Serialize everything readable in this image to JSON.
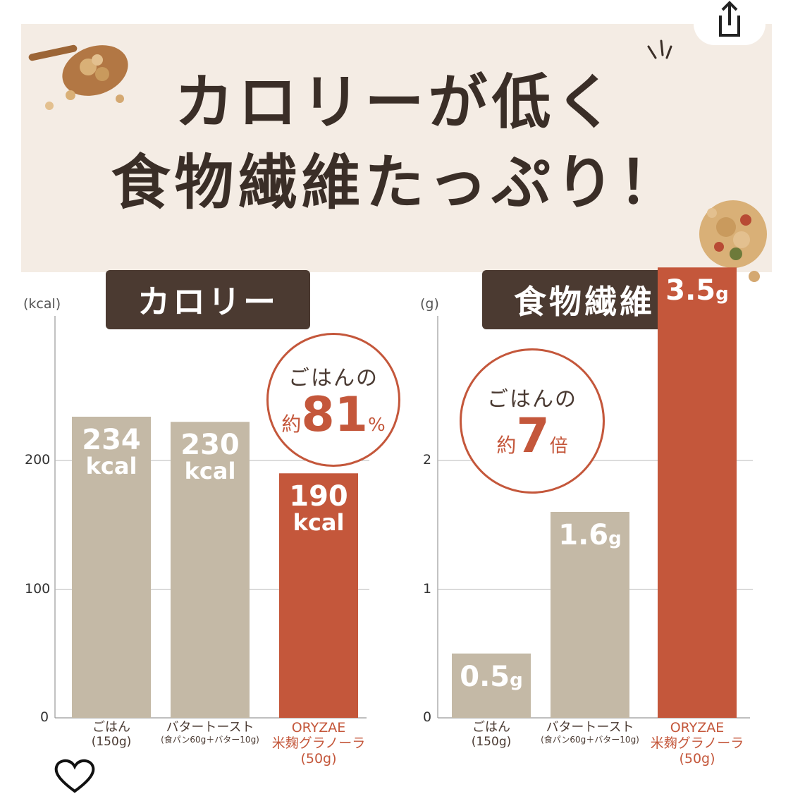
{
  "headline": {
    "line1": "カロリーが低く",
    "line2": "食物繊維たっぷり！"
  },
  "colors": {
    "neutral_bar": "#c4b9a6",
    "accent_bar": "#c4573b",
    "pill_bg": "#4b3a31",
    "hero_bg": "#f4ece4"
  },
  "chart_data": [
    {
      "type": "bar",
      "title": "カロリー",
      "unit": "(kcal)",
      "categories": [
        {
          "main": "ごはん",
          "paren": "(150g)",
          "small": ""
        },
        {
          "main": "バタートースト",
          "paren": "",
          "small": "(食パン60g＋バター10g)"
        },
        {
          "main": "ORYZAE\n米麹グラノーラ",
          "paren": "(50g)",
          "small": ""
        }
      ],
      "values": [
        234,
        230,
        190
      ],
      "value_labels": [
        {
          "val": "234",
          "sub": "kcal"
        },
        {
          "val": "230",
          "sub": "kcal"
        },
        {
          "val": "190",
          "sub": "kcal"
        }
      ],
      "yticks": [
        "0",
        "100",
        "200"
      ],
      "ylim": [
        0,
        250
      ],
      "highlight_index": 2,
      "callout": {
        "lead": "ごはんの",
        "pre": "約",
        "num": "81",
        "suf": "%"
      }
    },
    {
      "type": "bar",
      "title": "食物繊維",
      "unit": "(g)",
      "categories": [
        {
          "main": "ごはん",
          "paren": "(150g)",
          "small": ""
        },
        {
          "main": "バタートースト",
          "paren": "",
          "small": "(食パン60g＋バター10g)"
        },
        {
          "main": "ORYZAE\n米麹グラノーラ",
          "paren": "(50g)",
          "small": ""
        }
      ],
      "values": [
        0.5,
        1.6,
        3.5
      ],
      "value_labels": [
        {
          "val": "0.5",
          "sub": "g"
        },
        {
          "val": "1.6",
          "sub": "g"
        },
        {
          "val": "3.5",
          "sub": "g"
        }
      ],
      "yticks": [
        "0",
        "1",
        "2"
      ],
      "ylim": [
        0,
        3
      ],
      "highlight_index": 2,
      "callout": {
        "lead": "ごはんの",
        "pre": "約",
        "num": "7",
        "suf": "倍"
      }
    }
  ],
  "icons": {
    "share": "share-icon",
    "heart": "heart-icon"
  }
}
